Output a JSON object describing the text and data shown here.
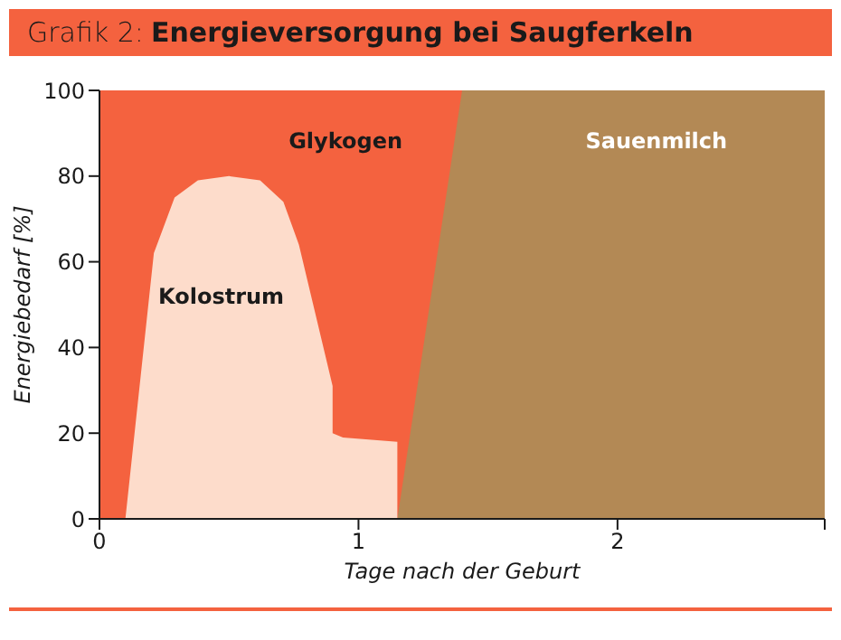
{
  "chart_data": {
    "type": "area",
    "title": "Grafik 2: Energieversorgung bei Saugferkeln",
    "xlabel": "Tage nach der Geburt",
    "ylabel": "Energiebedarf [%]",
    "series": [
      {
        "name": "Glykogen",
        "color": "#f4623f",
        "x": [
          0,
          1.4
        ],
        "values": [
          100,
          100
        ]
      },
      {
        "name": "Sauenmilch",
        "color": "#b38955",
        "x": [
          1.15,
          1.4,
          2.8
        ],
        "values": [
          0,
          100,
          100
        ]
      },
      {
        "name": "Kolostrum",
        "color": "#fddccb",
        "x": [
          0.1,
          0.21,
          0.29,
          0.38,
          0.5,
          0.62,
          0.71,
          0.77,
          0.9,
          0.9,
          0.94,
          1.15
        ],
        "values": [
          0,
          62,
          75,
          79,
          80,
          79,
          74,
          64,
          31,
          20,
          19,
          18
        ]
      }
    ],
    "xlim": [
      0,
      2.8
    ],
    "xticks": [
      0,
      1,
      2,
      {
        "value": 2.8,
        "label": null
      }
    ],
    "ylim": [
      0,
      100
    ],
    "yticks": [
      0,
      20,
      40,
      60,
      80,
      100
    ]
  }
}
